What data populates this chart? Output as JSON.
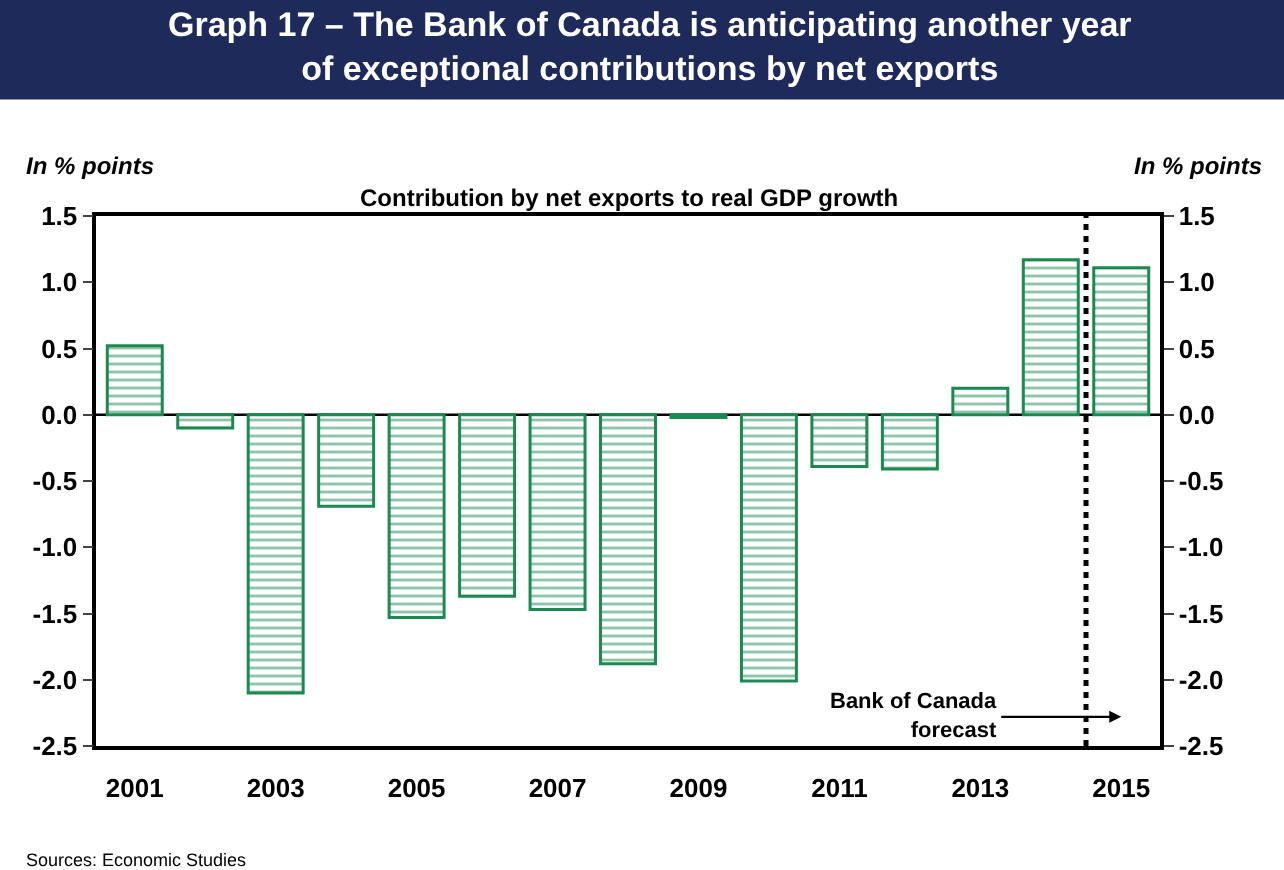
{
  "chart_data": {
    "type": "bar",
    "title": "Graph 17 – The Bank of Canada is anticipating another year\nof exceptional contributions by net exports",
    "subtitle": "Contribution by net exports to real GDP growth",
    "ylabel": "In % points",
    "y2label": "In % points",
    "x": [
      2001,
      2002,
      2003,
      2004,
      2005,
      2006,
      2007,
      2008,
      2009,
      2010,
      2011,
      2012,
      2013,
      2014,
      2015
    ],
    "series": [
      {
        "color": "#1a8a50",
        "values": [
          0.52,
          -0.1,
          -2.1,
          -0.69,
          -1.53,
          -1.37,
          -1.47,
          -1.88,
          -0.02,
          -2.01,
          -0.39,
          -0.41,
          0.2,
          1.17,
          1.11
        ]
      }
    ],
    "xlim": [
      2000.45,
      2015.55
    ],
    "xticks": [
      2001,
      2003,
      2005,
      2007,
      2009,
      2011,
      2013,
      2015
    ],
    "ylim": [
      -2.5,
      1.5
    ],
    "yticks": [
      {
        "value": -2.5,
        "label": "-2.5"
      },
      {
        "value": -2,
        "label": "-2.0"
      },
      {
        "value": -1.5,
        "label": "-1.5"
      },
      {
        "value": -1,
        "label": "-1.0"
      },
      {
        "value": -0.5,
        "label": "-0.5"
      },
      {
        "value": 0,
        "label": "0.0"
      },
      {
        "value": 0.5,
        "label": "0.5"
      },
      {
        "value": 1,
        "label": "1.0"
      },
      {
        "value": 1.5,
        "label": "1.5"
      }
    ],
    "y2lim": [
      -2.5,
      1.5
    ],
    "y2ticks": [
      {
        "value": -2.5,
        "label": "-2.5"
      },
      {
        "value": -2,
        "label": "-2.0"
      },
      {
        "value": -1.5,
        "label": "-1.5"
      },
      {
        "value": -1,
        "label": "-1.0"
      },
      {
        "value": -0.5,
        "label": "-0.5"
      },
      {
        "value": 0,
        "label": "0.0"
      },
      {
        "value": 0.5,
        "label": "0.5"
      },
      {
        "value": 1,
        "label": "1.0"
      },
      {
        "value": 1.5,
        "label": "1.5"
      }
    ],
    "ref_lines": [
      {
        "axis": "y",
        "value": 0,
        "color": "#000000",
        "line_style": "solid"
      },
      {
        "axis": "x",
        "value": 2014.5,
        "label": "Bank of Canada\nforecast",
        "color": "#000000",
        "line_style": "dotted"
      }
    ],
    "annotations": [
      "Sources: Economic Studies"
    ],
    "grid": false
  }
}
